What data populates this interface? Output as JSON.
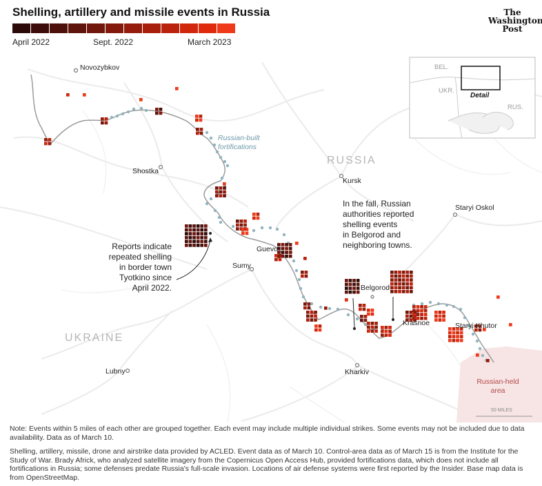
{
  "title": "Shelling, artillery and missile events in Russia",
  "logo": [
    "The",
    "Washington",
    "Post"
  ],
  "legend": {
    "labels": [
      "April 2022",
      "Sept. 2022",
      "March 2023"
    ],
    "colors": [
      "#2b0a08",
      "#3c0d0a",
      "#4d100b",
      "#5e130c",
      "#70160c",
      "#82190c",
      "#951c0c",
      "#a81f0c",
      "#bb220c",
      "#cf260c",
      "#e02a0d",
      "#ee3a1a"
    ]
  },
  "map": {
    "countries": {
      "russia": "RUSSIA",
      "ukraine": "UKRAINE"
    },
    "cities": [
      "Novozybkov",
      "Shostka",
      "Kursk",
      "Staryi Oskol",
      "Sumy",
      "Guevo",
      "Belgorod",
      "Krasnoe",
      "Staryi Khutor",
      "Lubny",
      "Kharkiv"
    ],
    "fortifications_label": [
      "Russian-built",
      "fortifications"
    ],
    "annotation_left": [
      "Reports indicate",
      "repeated shelling",
      "in border town",
      "Tyotkino since",
      "April 2022."
    ],
    "annotation_right": [
      "In the fall, Russian",
      "authorities reported",
      "shelling events",
      "in Belgorod and",
      "neighboring towns."
    ],
    "held_area": [
      "Russian-held",
      "area"
    ],
    "scale_bar": "50 MILES",
    "inset": {
      "bel": "BEL.",
      "ukr": "UKR.",
      "rus": "RUS.",
      "detail": "Detail"
    },
    "colors": {
      "border": "#9a9a9a",
      "fortification": "#8fb4bf",
      "held_area": "#f7e4e4",
      "roads": "#ececec"
    }
  },
  "notes": {
    "note": "Note: Events within 5 miles of each other are grouped together. Each event may include multiple individual strikes. Some events may not be included due to data availability. Data as of March 10.",
    "source": "Shelling, artillery, missile, drone and airstrike data provided by ACLED. Event data as of March 10. Control-area data as of March 15 is from the Institute for the Study of War. Brady Africk, who analyzed satellite imagery from the Copernicus Open Access Hub, provided fortifications data, which does not include all fortifications in Russia; some defenses predate Russia's full-scale invasion. Locations of air defense systems were first reported by the Insider. Base map data is from OpenStreetMap."
  }
}
